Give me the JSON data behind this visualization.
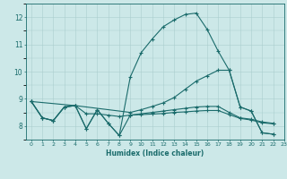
{
  "xlabel": "Humidex (Indice chaleur)",
  "xlim": [
    -0.5,
    23
  ],
  "ylim": [
    7.5,
    12.5
  ],
  "yticks": [
    8,
    9,
    10,
    11,
    12
  ],
  "xticks": [
    0,
    1,
    2,
    3,
    4,
    5,
    6,
    7,
    8,
    9,
    10,
    11,
    12,
    13,
    14,
    15,
    16,
    17,
    18,
    19,
    20,
    21,
    22,
    23
  ],
  "bg_color": "#cce8e8",
  "grid_color_major": "#aacece",
  "line_color": "#1a6b6b",
  "line_width": 0.8,
  "marker": "+",
  "markersize": 3,
  "markeredgewidth": 0.8,
  "series": [
    {
      "x": [
        0,
        1,
        2,
        3,
        4,
        5,
        6,
        7,
        8,
        9,
        10,
        11,
        12,
        13,
        14,
        15,
        16,
        17,
        18,
        19,
        20,
        21,
        22
      ],
      "y": [
        8.9,
        8.3,
        8.2,
        8.7,
        8.75,
        7.9,
        8.6,
        8.1,
        7.65,
        9.8,
        10.7,
        11.2,
        11.65,
        11.9,
        12.1,
        12.15,
        11.55,
        10.75,
        10.05,
        8.7,
        8.55,
        7.75,
        7.7
      ]
    },
    {
      "x": [
        0,
        1,
        2,
        3,
        4,
        5,
        6,
        7,
        8,
        9,
        10,
        11,
        12,
        13,
        14,
        15,
        16,
        17,
        18,
        19,
        20,
        21,
        22
      ],
      "y": [
        8.9,
        8.3,
        8.2,
        8.7,
        8.75,
        8.45,
        8.45,
        8.4,
        8.35,
        8.4,
        8.45,
        8.5,
        8.55,
        8.6,
        8.65,
        8.7,
        8.72,
        8.72,
        8.5,
        8.3,
        8.25,
        8.15,
        8.1
      ]
    },
    {
      "x": [
        0,
        4,
        9,
        10,
        11,
        12,
        13,
        14,
        15,
        16,
        17,
        18,
        19,
        20,
        21,
        22
      ],
      "y": [
        8.9,
        8.75,
        8.5,
        8.6,
        8.72,
        8.85,
        9.05,
        9.35,
        9.65,
        9.85,
        10.05,
        10.05,
        8.7,
        8.55,
        7.75,
        7.7
      ]
    },
    {
      "x": [
        0,
        1,
        2,
        3,
        4,
        5,
        6,
        7,
        8,
        9,
        10,
        11,
        12,
        13,
        14,
        15,
        16,
        17,
        18,
        19,
        20,
        21,
        22
      ],
      "y": [
        8.9,
        8.3,
        8.2,
        8.7,
        8.75,
        7.9,
        8.6,
        8.1,
        7.65,
        8.4,
        8.42,
        8.44,
        8.46,
        8.5,
        8.52,
        8.55,
        8.57,
        8.57,
        8.42,
        8.28,
        8.22,
        8.12,
        8.08
      ]
    }
  ]
}
